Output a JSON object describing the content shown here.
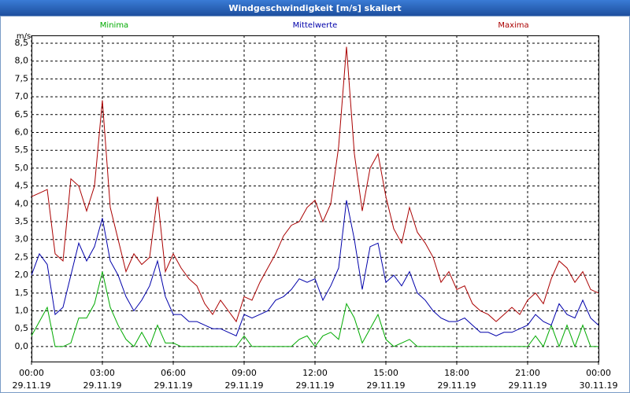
{
  "chart_data": {
    "type": "line",
    "title": "Windgeschwindigkeit [m/s] skaliert",
    "y_label": "m/s",
    "x": [
      0,
      20,
      40,
      60,
      80,
      100,
      120,
      140,
      160,
      180,
      200,
      220,
      240,
      260,
      280,
      300,
      320,
      340,
      360,
      380,
      400,
      420,
      440,
      460,
      480,
      500,
      520,
      540,
      560,
      580,
      600,
      620,
      640,
      660,
      680,
      700,
      720,
      740,
      760,
      780,
      800,
      820,
      840,
      860,
      880,
      900,
      920,
      940,
      960,
      980,
      1000,
      1020,
      1040,
      1060,
      1080,
      1100,
      1120,
      1140,
      1160,
      1180,
      1200,
      1220,
      1240,
      1260,
      1280,
      1300,
      1320,
      1340,
      1360,
      1380,
      1400,
      1420,
      1440
    ],
    "series": [
      {
        "name": "Minima",
        "color": "#00aa00",
        "values": [
          0.3,
          0.7,
          1.1,
          0,
          0,
          0.1,
          0.8,
          0.8,
          1.2,
          2.1,
          1.1,
          0.6,
          0.2,
          0,
          0.4,
          0,
          0.6,
          0.1,
          0.1,
          0,
          0,
          0,
          0,
          0,
          0,
          0,
          0,
          0.3,
          0,
          0,
          0,
          0,
          0,
          0,
          0.2,
          0.3,
          0,
          0.3,
          0.4,
          0.2,
          1.2,
          0.8,
          0.1,
          0.5,
          0.9,
          0.2,
          0,
          0.1,
          0.2,
          0,
          0,
          0,
          0,
          0,
          0,
          0,
          0,
          0,
          0,
          0,
          0,
          0,
          0,
          0,
          0.3,
          0,
          0.6,
          0,
          0.6,
          0,
          0.6,
          0,
          0
        ]
      },
      {
        "name": "Mittelwerte",
        "color": "#0000aa",
        "values": [
          2.0,
          2.6,
          2.3,
          0.9,
          1.1,
          2.0,
          2.9,
          2.4,
          2.8,
          3.6,
          2.4,
          2.0,
          1.4,
          1.0,
          1.3,
          1.7,
          2.4,
          1.4,
          0.9,
          0.9,
          0.7,
          0.7,
          0.6,
          0.5,
          0.5,
          0.4,
          0.3,
          0.9,
          0.8,
          0.9,
          1.0,
          1.3,
          1.4,
          1.6,
          1.9,
          1.8,
          1.9,
          1.3,
          1.7,
          2.2,
          4.1,
          3.0,
          1.6,
          2.8,
          2.9,
          1.8,
          2.0,
          1.7,
          2.1,
          1.5,
          1.3,
          1.0,
          0.8,
          0.7,
          0.7,
          0.8,
          0.6,
          0.4,
          0.4,
          0.3,
          0.4,
          0.4,
          0.5,
          0.6,
          0.9,
          0.7,
          0.6,
          1.2,
          0.9,
          0.8,
          1.3,
          0.8,
          0.6
        ]
      },
      {
        "name": "Maxima",
        "color": "#aa0000",
        "values": [
          4.2,
          4.3,
          4.4,
          2.6,
          2.4,
          4.7,
          4.5,
          3.8,
          4.5,
          6.9,
          3.9,
          3.0,
          2.1,
          2.6,
          2.3,
          2.5,
          4.2,
          2.1,
          2.6,
          2.2,
          1.9,
          1.7,
          1.2,
          0.9,
          1.3,
          1.0,
          0.7,
          1.4,
          1.3,
          1.8,
          2.2,
          2.6,
          3.1,
          3.4,
          3.5,
          3.9,
          4.1,
          3.5,
          4.0,
          5.6,
          8.4,
          5.4,
          3.8,
          5.0,
          5.4,
          4.2,
          3.3,
          2.9,
          3.9,
          3.2,
          2.9,
          2.5,
          1.8,
          2.1,
          1.6,
          1.7,
          1.2,
          1.0,
          0.9,
          0.7,
          0.9,
          1.1,
          0.9,
          1.3,
          1.5,
          1.2,
          1.9,
          2.4,
          2.2,
          1.8,
          2.1,
          1.6,
          1.5
        ]
      }
    ],
    "xlim": [
      0,
      1440
    ],
    "xticks": [
      {
        "value": 0,
        "label": "00:00"
      },
      {
        "value": 180,
        "label": "03:00"
      },
      {
        "value": 360,
        "label": "06:00"
      },
      {
        "value": 540,
        "label": "09:00"
      },
      {
        "value": 720,
        "label": "12:00"
      },
      {
        "value": 900,
        "label": "15:00"
      },
      {
        "value": 1080,
        "label": "18:00"
      },
      {
        "value": 1260,
        "label": "21:00"
      },
      {
        "value": 1440,
        "label": "00:00"
      }
    ],
    "xtick_dates": [
      "29.11.19",
      "29.11.19",
      "29.11.19",
      "29.11.19",
      "29.11.19",
      "29.11.19",
      "29.11.19",
      "29.11.19",
      "30.11.19"
    ],
    "ylim": [
      -0.42,
      8.72
    ],
    "yticks": [
      {
        "value": 0,
        "label": "0,0"
      },
      {
        "value": 0.5,
        "label": "0,5"
      },
      {
        "value": 1,
        "label": "1,0"
      },
      {
        "value": 1.5,
        "label": "1,5"
      },
      {
        "value": 2,
        "label": "2,0"
      },
      {
        "value": 2.5,
        "label": "2,5"
      },
      {
        "value": 3,
        "label": "3,0"
      },
      {
        "value": 3.5,
        "label": "3,5"
      },
      {
        "value": 4,
        "label": "4,0"
      },
      {
        "value": 4.5,
        "label": "4,5"
      },
      {
        "value": 5,
        "label": "5,0"
      },
      {
        "value": 5.5,
        "label": "5,5"
      },
      {
        "value": 6,
        "label": "6,0"
      },
      {
        "value": 6.5,
        "label": "6,5"
      },
      {
        "value": 7,
        "label": "7,0"
      },
      {
        "value": 7.5,
        "label": "7,5"
      },
      {
        "value": 8,
        "label": "8,0"
      },
      {
        "value": 8.5,
        "label": "8,5"
      }
    ],
    "grid": true
  }
}
